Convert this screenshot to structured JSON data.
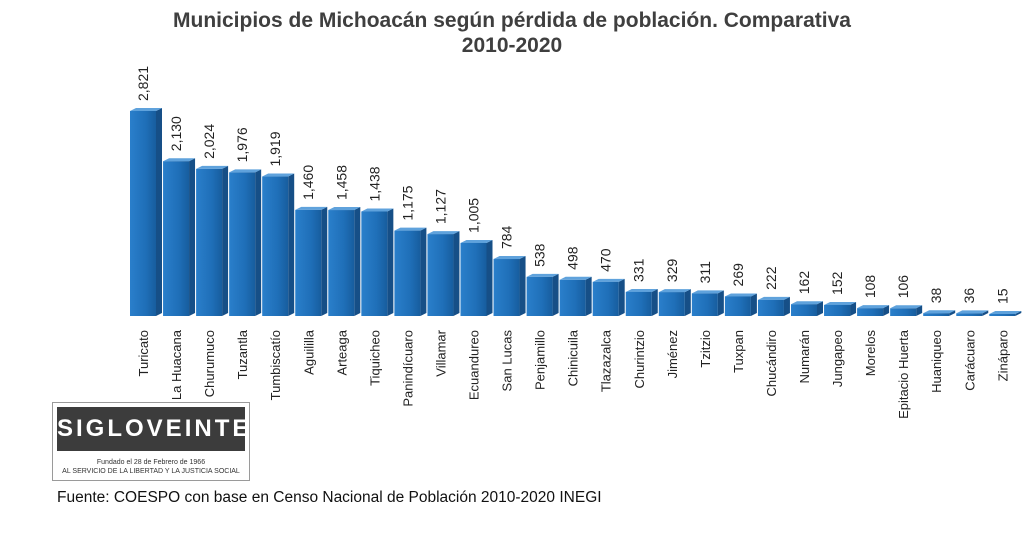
{
  "chart_data": {
    "type": "bar",
    "title": "Municipios de Michoacán según pérdida de población. Comparativa",
    "subtitle": "2010-2020",
    "xlabel": "",
    "ylabel": "",
    "ylim": [
      0,
      2821
    ],
    "grid": false,
    "legend": "none",
    "bar_color": "#1f6fb8",
    "categories": [
      "Turicato",
      "La Huacana",
      "Churumuco",
      "Tuzantla",
      "Tumbiscatío",
      "Aguililla",
      "Arteaga",
      "Tiquicheo",
      "Panindícuaro",
      "Villamar",
      "Ecuandureo",
      "San Lucas",
      "Penjamillo",
      "Chinicuila",
      "Tlazazalca",
      "Churintzio",
      "Jiménez",
      "Tzitzio",
      "Tuxpan",
      "Chucándiro",
      "Numarán",
      "Jungapeo",
      "Morelos",
      "Epitacio Huerta",
      "Huaniqueo",
      "Carácuaro",
      "Zináparo"
    ],
    "values": [
      2821,
      2130,
      2024,
      1976,
      1919,
      1460,
      1458,
      1438,
      1175,
      1127,
      1005,
      784,
      538,
      498,
      470,
      331,
      329,
      311,
      269,
      222,
      162,
      152,
      108,
      106,
      38,
      36,
      15
    ],
    "value_labels": [
      "2,821",
      "2,130",
      "2,024",
      "1,976",
      "1,919",
      "1,460",
      "1,458",
      "1,438",
      "1,175",
      "1,127",
      "1,005",
      "784",
      "538",
      "498",
      "470",
      "331",
      "329",
      "311",
      "269",
      "222",
      "162",
      "152",
      "108",
      "106",
      "38",
      "36",
      "15"
    ]
  },
  "logo": {
    "name": "SIGLOVEINTE",
    "line1": "Fundado el 28 de Febrero de 1966",
    "line2": "AL SERVICIO DE LA LIBERTAD Y LA JUSTICIA SOCIAL"
  },
  "source": "Fuente: COESPO con base en Censo Nacional de Población 2010-2020 INEGI"
}
